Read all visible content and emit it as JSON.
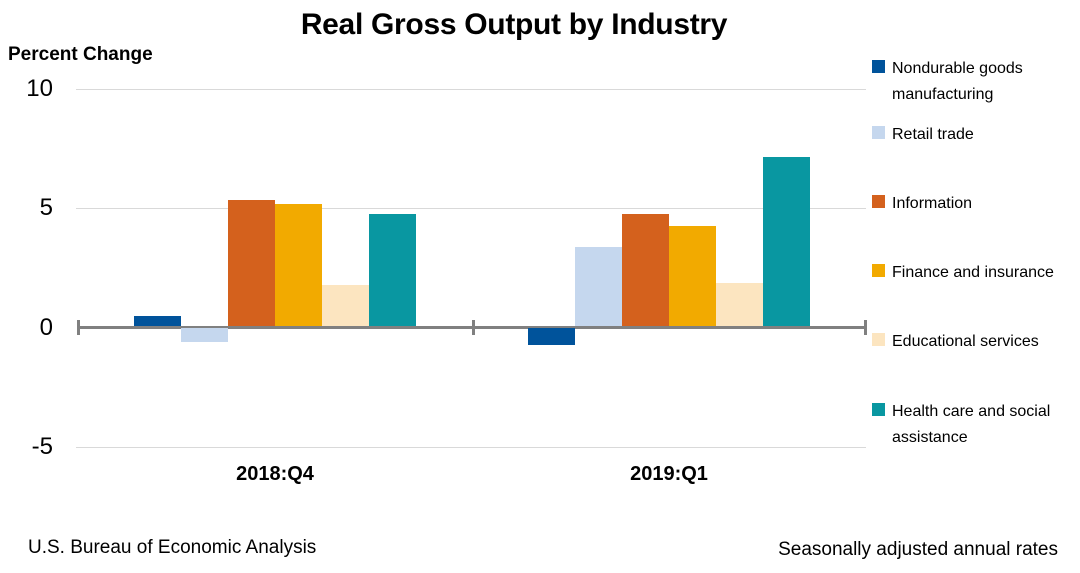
{
  "title": "Real Gross Output by Industry",
  "footer": {
    "left": "U.S. Bureau of Economic Analysis",
    "right": "Seasonally adjusted annual rates"
  },
  "colors": {
    "axis": "#808080",
    "gridline": "#d9d9d9"
  },
  "chart_data": {
    "type": "bar",
    "title": "Real Gross Output by Industry",
    "xlabel": "",
    "ylabel": "Percent Change",
    "categories": [
      "2018:Q4",
      "2019:Q1"
    ],
    "series": [
      {
        "name": "Nondurable goods manufacturing",
        "color": "#00539B",
        "values": [
          0.4,
          -0.7
        ]
      },
      {
        "name": "Retail trade",
        "color": "#C5D7EE",
        "values": [
          -0.6,
          3.3
        ]
      },
      {
        "name": "Information",
        "color": "#D4611D",
        "values": [
          5.3,
          4.7
        ]
      },
      {
        "name": "Finance and insurance",
        "color": "#F2AA00",
        "values": [
          5.1,
          4.2
        ]
      },
      {
        "name": "Educational services",
        "color": "#FCE5C0",
        "values": [
          1.7,
          1.8
        ]
      },
      {
        "name": "Health care and social assistance",
        "color": "#0997A1",
        "values": [
          4.7,
          7.1
        ]
      }
    ],
    "y_ticks": [
      10,
      5,
      0,
      -5
    ],
    "ylim": [
      -5,
      10
    ],
    "grid": true,
    "legend_position": "right"
  }
}
